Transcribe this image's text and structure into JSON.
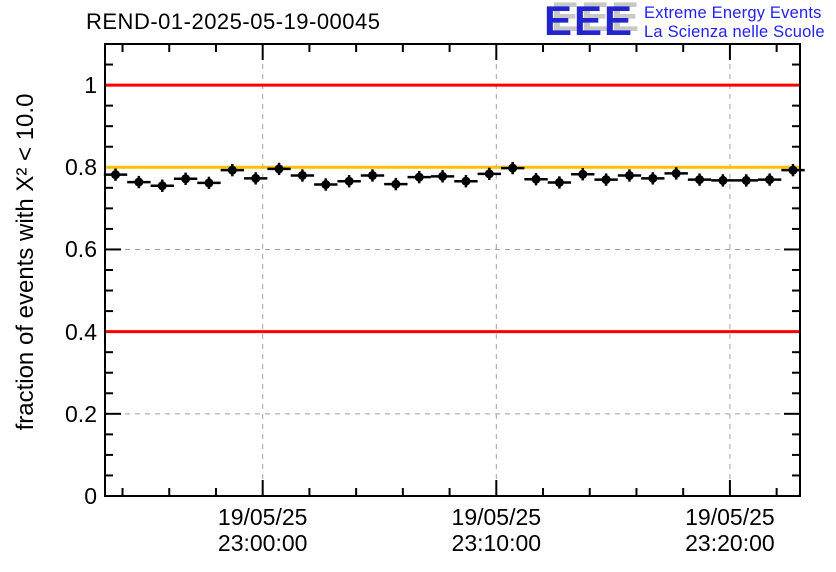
{
  "title": "REND-01-2025-05-19-00045",
  "logo": {
    "acronym": "EEE",
    "line1": "Extreme Energy Events",
    "line2": "La Scienza nelle Scuole",
    "acronym_color": "#2424cc",
    "text_color": "#2222ee",
    "shadow_color": "#c8c8c8"
  },
  "chart_data": {
    "type": "scatter",
    "title": "REND-01-2025-05-19-00045",
    "ylabel": "fraction of events with X² < 10.0",
    "ylim": [
      0,
      1.1
    ],
    "xlim_minutes_from_2300": [
      -6.75,
      23.0
    ],
    "grid": true,
    "background": "#ffffff",
    "axis_color": "#000000",
    "grid_color": "#a0a0a0",
    "x_ticks": {
      "major_minutes": [
        0,
        10,
        20
      ],
      "minor_step_minutes": 2,
      "major_labels": [
        [
          "19/05/25",
          "23:00:00"
        ],
        [
          "19/05/25",
          "23:10:00"
        ],
        [
          "19/05/25",
          "23:20:00"
        ]
      ]
    },
    "y_ticks": {
      "major": [
        0,
        0.2,
        0.4,
        0.6,
        0.8,
        1
      ],
      "major_labels": [
        "0",
        "0.2",
        "0.4",
        "0.6",
        "0.8",
        "1"
      ],
      "minor_step": 0.05
    },
    "reference_lines": [
      {
        "y": 1.0,
        "color": "#ff0000"
      },
      {
        "y": 0.8,
        "color": "#ffc000"
      },
      {
        "y": 0.4,
        "color": "#ff0000"
      }
    ],
    "series": [
      {
        "name": "fraction of events with X2 < 10.0 per minute",
        "marker": "filled-circle",
        "color": "#000000",
        "x_error_minutes": 0.5,
        "y_error": 0.015,
        "points": [
          {
            "t": -6.3,
            "v": 0.782
          },
          {
            "t": -5.3,
            "v": 0.764
          },
          {
            "t": -4.3,
            "v": 0.755
          },
          {
            "t": -3.3,
            "v": 0.772
          },
          {
            "t": -2.3,
            "v": 0.762
          },
          {
            "t": -1.3,
            "v": 0.793
          },
          {
            "t": -0.3,
            "v": 0.773
          },
          {
            "t": 0.7,
            "v": 0.796
          },
          {
            "t": 1.7,
            "v": 0.78
          },
          {
            "t": 2.7,
            "v": 0.758
          },
          {
            "t": 3.7,
            "v": 0.766
          },
          {
            "t": 4.7,
            "v": 0.78
          },
          {
            "t": 5.7,
            "v": 0.759
          },
          {
            "t": 6.7,
            "v": 0.776
          },
          {
            "t": 7.7,
            "v": 0.778
          },
          {
            "t": 8.7,
            "v": 0.766
          },
          {
            "t": 9.7,
            "v": 0.784
          },
          {
            "t": 10.7,
            "v": 0.798
          },
          {
            "t": 11.7,
            "v": 0.771
          },
          {
            "t": 12.7,
            "v": 0.763
          },
          {
            "t": 13.7,
            "v": 0.783
          },
          {
            "t": 14.7,
            "v": 0.77
          },
          {
            "t": 15.7,
            "v": 0.78
          },
          {
            "t": 16.7,
            "v": 0.773
          },
          {
            "t": 17.7,
            "v": 0.785
          },
          {
            "t": 18.7,
            "v": 0.77
          },
          {
            "t": 19.7,
            "v": 0.768
          },
          {
            "t": 20.7,
            "v": 0.768
          },
          {
            "t": 21.7,
            "v": 0.77
          },
          {
            "t": 22.7,
            "v": 0.793
          }
        ]
      }
    ]
  }
}
